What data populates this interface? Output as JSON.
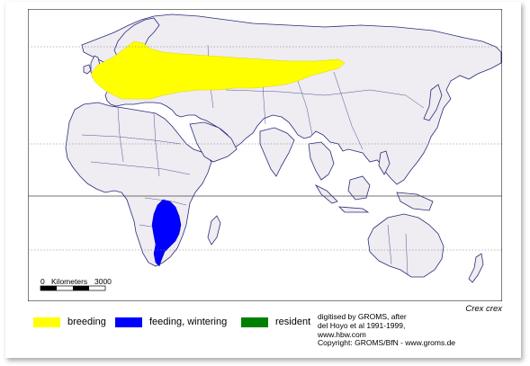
{
  "map": {
    "species": "Crex crex",
    "scale": {
      "zero": "0",
      "unit": "Kilometers",
      "max": "3000"
    },
    "colors": {
      "land": "#efecf2",
      "ocean": "#ffffff",
      "border": "#2b2b7a",
      "graticule": "#777777",
      "breeding": "#ffff00",
      "wintering": "#0000ff",
      "resident": "#008000"
    }
  },
  "legend": [
    {
      "label": "breeding",
      "color": "#ffff00"
    },
    {
      "label": "feeding, wintering",
      "color": "#0000ff"
    },
    {
      "label": "resident",
      "color": "#008000"
    }
  ],
  "credits": [
    "digitised by GROMS, after",
    "del Hoyo et al 1991-1999,",
    "www.hbw.com",
    "Copyright: GROMS/BfN - www.groms.de"
  ]
}
